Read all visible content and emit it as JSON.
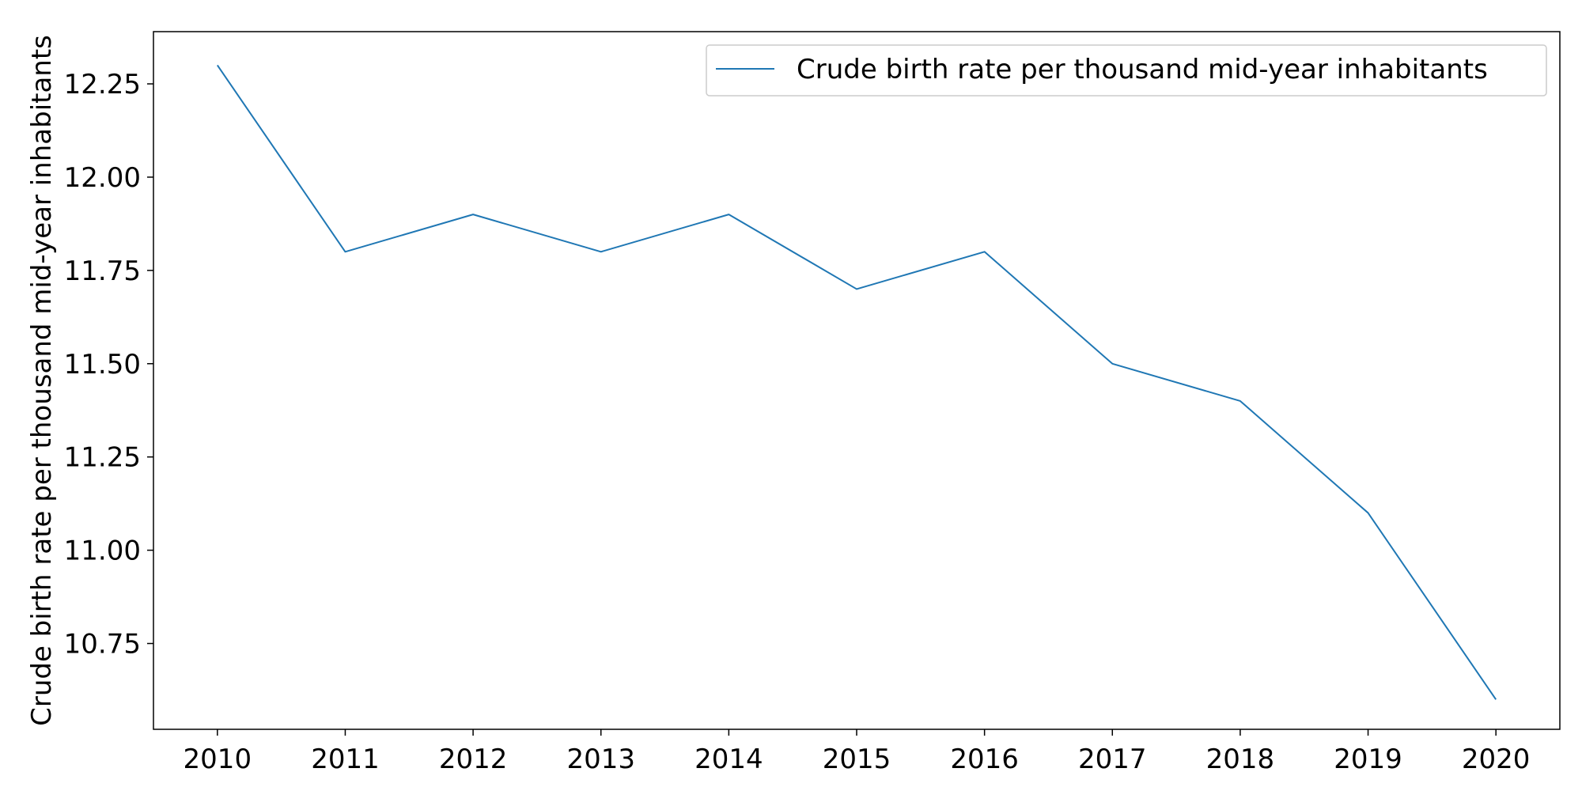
{
  "chart_data": {
    "type": "line",
    "title": "",
    "xlabel": "",
    "ylabel": "Crude birth rate per thousand mid-year inhabitants",
    "x": [
      2010,
      2011,
      2012,
      2013,
      2014,
      2015,
      2016,
      2017,
      2018,
      2019,
      2020
    ],
    "x_tick_labels": [
      "2010",
      "2011",
      "2012",
      "2013",
      "2014",
      "2015",
      "2016",
      "2017",
      "2018",
      "2019",
      "2020"
    ],
    "y_ticks": [
      10.75,
      11.0,
      11.25,
      11.5,
      11.75,
      12.0,
      12.25
    ],
    "y_tick_labels": [
      "10.75",
      "11.00",
      "11.25",
      "11.50",
      "11.75",
      "12.00",
      "12.25"
    ],
    "xlim": [
      2009.5,
      2020.5
    ],
    "ylim": [
      10.52,
      12.39
    ],
    "grid": false,
    "legend_position": "top-right",
    "series": [
      {
        "name": "Crude birth rate per thousand mid-year inhabitants",
        "color": "#1f77b4",
        "values": [
          12.3,
          11.8,
          11.9,
          11.8,
          11.9,
          11.7,
          11.8,
          11.5,
          11.4,
          11.1,
          10.6
        ]
      }
    ]
  }
}
